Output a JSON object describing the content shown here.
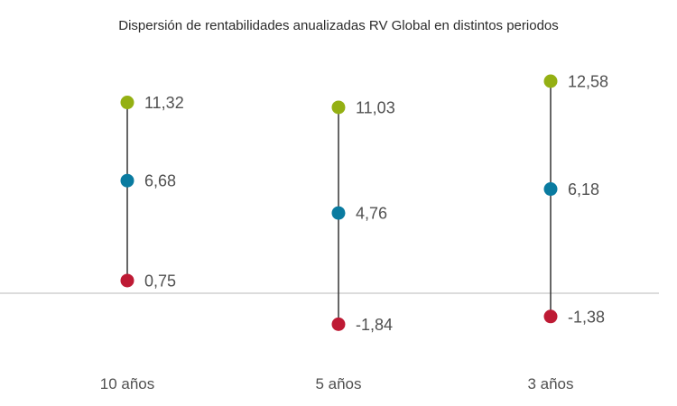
{
  "chart_data": {
    "type": "scatter",
    "title": "Dispersión de rentabilidades anualizadas RV Global en distintos periodos",
    "categories": [
      "10 años",
      "5 años",
      "3 años"
    ],
    "series": [
      {
        "values": [
          11.32,
          11.03,
          12.58
        ],
        "labels": [
          "11,32",
          "11,03",
          "12,58"
        ],
        "color": "#94b013"
      },
      {
        "values": [
          6.68,
          4.76,
          6.18
        ],
        "labels": [
          "6,68",
          "4,76",
          "6,18"
        ],
        "color": "#0a7ba0"
      },
      {
        "values": [
          0.75,
          -1.84,
          -1.38
        ],
        "labels": [
          "0,75",
          "-1,84",
          "-1,38"
        ],
        "color": "#be1a34"
      }
    ],
    "ylim": [
      -3.5,
      14.5
    ],
    "grid": false,
    "zero_line": true,
    "line_color": "#333333",
    "axis_color": "#c8c8c8"
  }
}
